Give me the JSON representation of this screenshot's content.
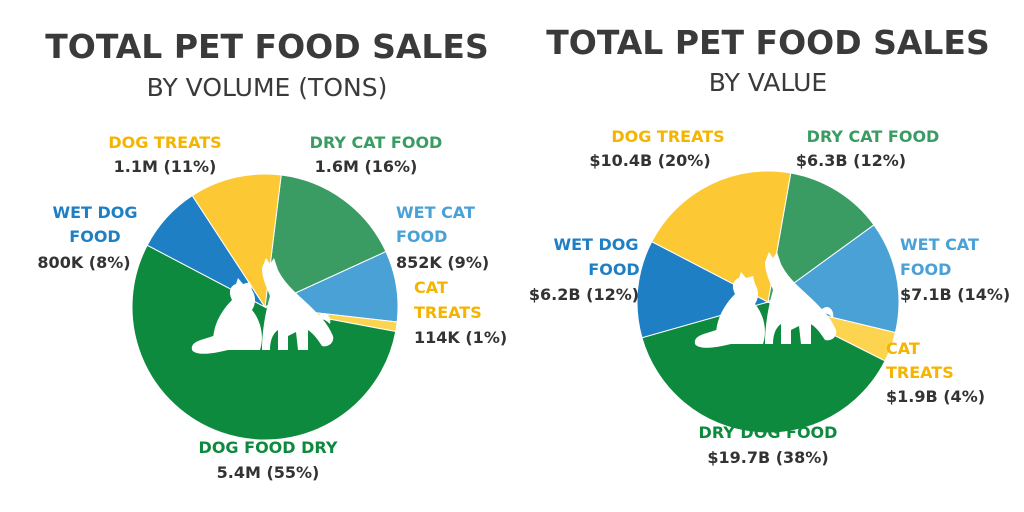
{
  "colors": {
    "dog_food_dry": "#0e8a3e",
    "wet_dog_food": "#1f7fc4",
    "dog_treats": "#fcc934",
    "dry_cat_food": "#3a9c63",
    "wet_cat_food": "#4aa1d6",
    "cat_treats": "#fcd450",
    "text_dark": "#333333"
  },
  "chart_data": [
    {
      "type": "pie",
      "title": "TOTAL PET FOOD SALES",
      "subtitle": "BY VOLUME (TONS)",
      "slices": [
        {
          "id": "dry_cat_food",
          "label": "DRY CAT FOOD",
          "value_text": "1.6M (16%)",
          "value": 1.6,
          "color": "#3a9c63"
        },
        {
          "id": "wet_cat_food",
          "label": "WET CAT FOOD",
          "value_text": "852K (9%)",
          "value": 0.852,
          "color": "#4aa1d6"
        },
        {
          "id": "cat_treats",
          "label": "CAT TREATS",
          "value_text": "114K (1%)",
          "value": 0.114,
          "color": "#fcd450"
        },
        {
          "id": "dog_food_dry",
          "label": "DOG FOOD DRY",
          "value_text": "5.4M (55%)",
          "value": 5.4,
          "color": "#0e8a3e"
        },
        {
          "id": "wet_dog_food",
          "label": "WET DOG FOOD",
          "value_text": "800K (8%)",
          "value": 0.8,
          "color": "#1f7fc4"
        },
        {
          "id": "dog_treats",
          "label": "DOG TREATS",
          "value_text": "1.1M (11%)",
          "value": 1.1,
          "color": "#fcc934"
        }
      ]
    },
    {
      "type": "pie",
      "title": "TOTAL PET FOOD SALES",
      "subtitle": "BY VALUE",
      "slices": [
        {
          "id": "dry_cat_food",
          "label": "DRY CAT FOOD",
          "value_text": "$6.3B (12%)",
          "value": 6.3,
          "color": "#3a9c63"
        },
        {
          "id": "wet_cat_food",
          "label": "WET CAT FOOD",
          "value_text": "$7.1B (14%)",
          "value": 7.1,
          "color": "#4aa1d6"
        },
        {
          "id": "cat_treats",
          "label": "CAT TREATS",
          "value_text": "$1.9B (4%)",
          "value": 1.9,
          "color": "#fcd450"
        },
        {
          "id": "dry_dog_food",
          "label": "DRY DOG FOOD",
          "value_text": "$19.7B (38%)",
          "value": 19.7,
          "color": "#0e8a3e"
        },
        {
          "id": "wet_dog_food",
          "label": "WET DOG FOOD",
          "value_text": "$6.2B (12%)",
          "value": 6.2,
          "color": "#1f7fc4"
        },
        {
          "id": "dog_treats",
          "label": "DOG TREATS",
          "value_text": "$10.4B (20%)",
          "value": 10.4,
          "color": "#fcc934"
        }
      ]
    }
  ]
}
